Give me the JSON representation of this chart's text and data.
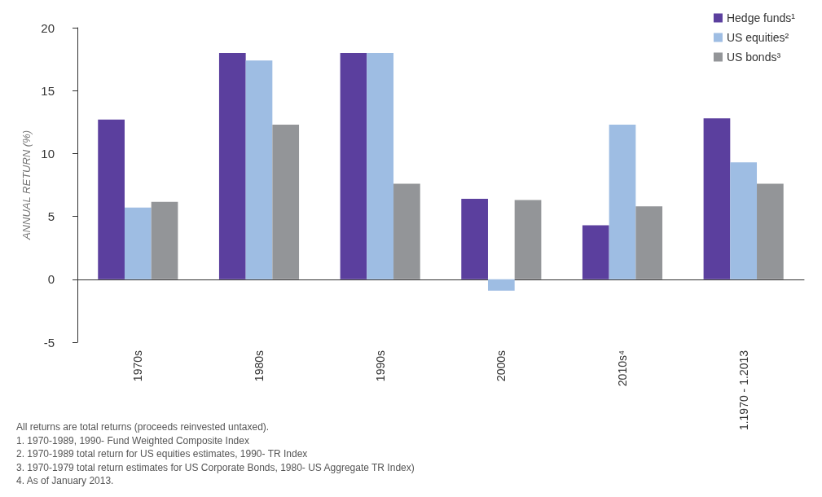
{
  "chart_data": {
    "type": "bar",
    "ylabel": "ANNUAL RETURN (%)",
    "categories": [
      "1970s",
      "1980s",
      "1990s",
      "2000s",
      "2010s⁴",
      "1.1970 - 1.2013"
    ],
    "series": [
      {
        "name": "Hedge funds¹",
        "color": "#5b3f9e",
        "values": [
          12.7,
          18.0,
          18.0,
          6.4,
          4.3,
          12.8
        ]
      },
      {
        "name": "US equities²",
        "color": "#9ebde3",
        "values": [
          5.7,
          17.4,
          18.0,
          -0.9,
          12.3,
          9.3
        ]
      },
      {
        "name": "US bonds³",
        "color": "#939598",
        "values": [
          6.15,
          12.3,
          7.6,
          6.3,
          5.8,
          7.6
        ]
      }
    ],
    "ylim": [
      -5,
      20
    ],
    "yticks": [
      -5,
      0,
      5,
      10,
      15,
      20
    ],
    "legend": "top right",
    "annotations": [
      "All returns are total returns (proceeds reinvested untaxed).",
      "1. 1970-1989, 1990- Fund Weighted Composite Index",
      "2. 1970-1989 total return for US equities estimates, 1990- TR Index",
      "3. 1970-1979 total return estimates for US Corporate Bonds, 1980- US Aggregate TR Index)",
      "4. As of January 2013."
    ]
  }
}
